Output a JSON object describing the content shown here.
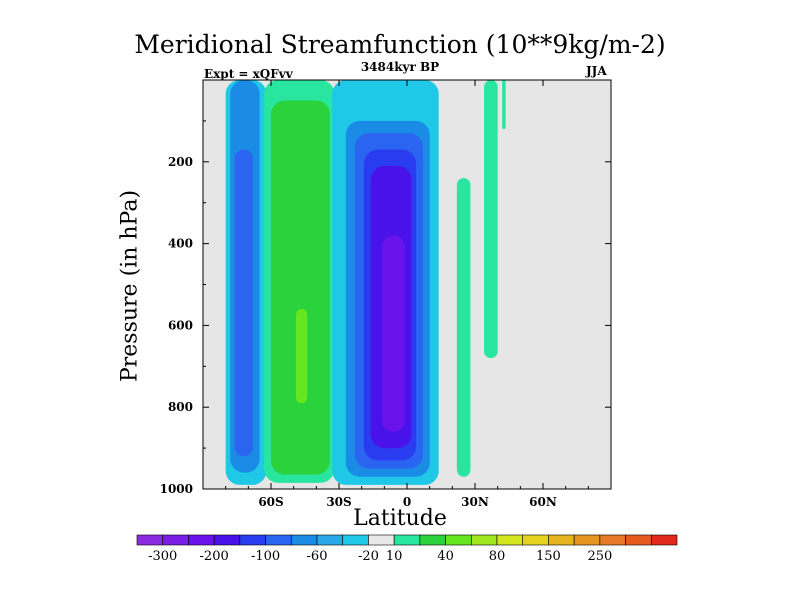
{
  "chart_data": {
    "type": "contour",
    "title": "Meridional Streamfunction (10**9kg/m-2)",
    "subtitle": "3484kyr BP",
    "experiment_label": "Expt = xQFvv",
    "season": "JJA",
    "xlabel": "Latitude",
    "ylabel": "Pressure (in hPa)",
    "xlim": [
      -90,
      90
    ],
    "ylim": [
      1000,
      0
    ],
    "x_ticks": [
      {
        "value": -60,
        "label": "60S"
      },
      {
        "value": -30,
        "label": "30S"
      },
      {
        "value": 0,
        "label": "0"
      },
      {
        "value": 30,
        "label": "30N"
      },
      {
        "value": 60,
        "label": "60N"
      }
    ],
    "y_ticks": [
      {
        "value": 200,
        "label": "200"
      },
      {
        "value": 400,
        "label": "400"
      },
      {
        "value": 600,
        "label": "600"
      },
      {
        "value": 800,
        "label": "800"
      },
      {
        "value": 1000,
        "label": "1000"
      }
    ],
    "background_color": "#e6e6e6",
    "colorbar": {
      "colors": [
        "#8a2be2",
        "#7a1ee6",
        "#6a12ea",
        "#4a12ea",
        "#2a3cf0",
        "#2a64f0",
        "#1a8ce6",
        "#28a8e6",
        "#1ec8e6",
        "#e8e8e8",
        "#28e6a0",
        "#2ad23c",
        "#66e61e",
        "#a0e61e",
        "#d2e61e",
        "#e6d21e",
        "#e6b41e",
        "#e6961e",
        "#e67828",
        "#e65a1e",
        "#e02a1e"
      ],
      "labels": [
        "-300",
        "-200",
        "-100",
        "-60",
        "-20",
        "10",
        "40",
        "80",
        "150",
        "250"
      ],
      "label_after_box": [
        0,
        2,
        4,
        6,
        8,
        9,
        11,
        13,
        15,
        17
      ]
    },
    "regions": [
      {
        "name": "outer-ss-cell-edge",
        "color": "#1ec8e6",
        "lat_min": -80,
        "lat_max": -62,
        "p_top": 0,
        "p_bottom": 990
      },
      {
        "name": "outer-ss-cell-mid",
        "color": "#1a8ce6",
        "lat_min": -78,
        "lat_max": -65,
        "p_top": 0,
        "p_bottom": 960
      },
      {
        "name": "outer-ss-cell-core",
        "color": "#2a64f0",
        "lat_min": -76,
        "lat_max": -68,
        "p_top": 170,
        "p_bottom": 920
      },
      {
        "name": "ferrel-cell-edge",
        "color": "#28e6a0",
        "lat_min": -63,
        "lat_max": -32,
        "p_top": 0,
        "p_bottom": 985
      },
      {
        "name": "ferrel-cell-core",
        "color": "#2ad23c",
        "lat_min": -60,
        "lat_max": -34,
        "p_top": 50,
        "p_bottom": 965
      },
      {
        "name": "ferrel-cell-max",
        "color": "#66e61e",
        "lat_min": -49,
        "lat_max": -44,
        "p_top": 560,
        "p_bottom": 790
      },
      {
        "name": "hadley-cell-edge",
        "color": "#1ec8e6",
        "lat_min": -33,
        "lat_max": 14,
        "p_top": 0,
        "p_bottom": 990
      },
      {
        "name": "hadley-cell-l1",
        "color": "#1a8ce6",
        "lat_min": -27,
        "lat_max": 10,
        "p_top": 100,
        "p_bottom": 970
      },
      {
        "name": "hadley-cell-l2",
        "color": "#2a64f0",
        "lat_min": -23,
        "lat_max": 7,
        "p_top": 130,
        "p_bottom": 950
      },
      {
        "name": "hadley-cell-l3",
        "color": "#2a3cf0",
        "lat_min": -19,
        "lat_max": 4,
        "p_top": 170,
        "p_bottom": 930
      },
      {
        "name": "hadley-cell-l4",
        "color": "#4a12ea",
        "lat_min": -16,
        "lat_max": 2,
        "p_top": 210,
        "p_bottom": 900
      },
      {
        "name": "hadley-cell-core",
        "color": "#6a12ea",
        "lat_min": -11,
        "lat_max": -1,
        "p_top": 380,
        "p_bottom": 860
      },
      {
        "name": "nh-tropical-positive",
        "color": "#28e6a0",
        "lat_min": 22,
        "lat_max": 28,
        "p_top": 240,
        "p_bottom": 970
      },
      {
        "name": "nh-upper-positive",
        "color": "#28e6a0",
        "lat_min": 34,
        "lat_max": 40,
        "p_top": 0,
        "p_bottom": 680
      },
      {
        "name": "nh-high-strip",
        "color": "#28e6a0",
        "lat_min": 42,
        "lat_max": 43.5,
        "p_top": 0,
        "p_bottom": 120
      }
    ]
  }
}
